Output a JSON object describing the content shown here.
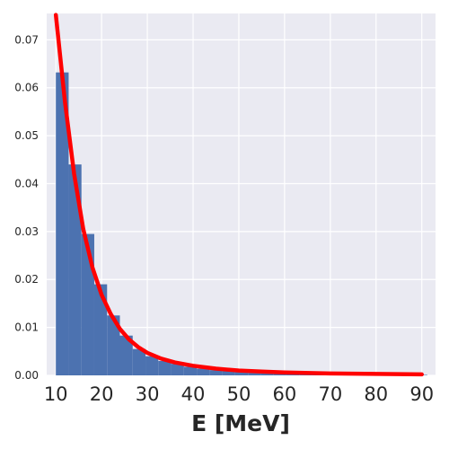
{
  "chart_data": {
    "type": "bar",
    "xlabel": "E [MeV]",
    "ylabel": "",
    "xlim": [
      8,
      93
    ],
    "ylim": [
      0,
      0.0755
    ],
    "grid": true,
    "x_ticks": [
      "10",
      "20",
      "30",
      "40",
      "50",
      "60",
      "70",
      "80",
      "90"
    ],
    "y_ticks": [
      "0.00",
      "0.01",
      "0.02",
      "0.03",
      "0.04",
      "0.05",
      "0.06",
      "0.07"
    ],
    "colors": {
      "background": "#eaeaf2",
      "bars": "#4c72b0",
      "curve": "#ff0000"
    },
    "histogram": {
      "bin_edges": [
        10,
        12.8,
        15.6,
        18.4,
        21.2,
        24.0,
        26.8,
        29.6,
        32.4,
        35.2,
        38.0,
        40.8,
        43.6,
        46.4,
        49.2,
        52.0,
        54.8,
        57.6,
        60.4,
        63.2,
        66.0,
        68.8,
        71.6,
        74.4,
        77.2,
        80.0,
        82.8,
        85.6,
        88.4,
        91.2
      ],
      "values": [
        0.0632,
        0.044,
        0.0295,
        0.019,
        0.0125,
        0.0083,
        0.0055,
        0.004,
        0.003,
        0.0024,
        0.0018,
        0.0014,
        0.0011,
        0.0009,
        0.0007,
        0.0006,
        0.0005,
        0.0004,
        0.0004,
        0.0003,
        0.0003,
        0.0002,
        0.0002,
        0.0002,
        0.0002,
        0.0001,
        0.0001,
        0.0001,
        0.0001
      ]
    },
    "series": [
      {
        "type": "line",
        "x": [
          10,
          12,
          14,
          16,
          18,
          20,
          22,
          24,
          26,
          28,
          30,
          33,
          36,
          40,
          45,
          50,
          55,
          60,
          70,
          80,
          90
        ],
        "y": [
          0.0752,
          0.057,
          0.042,
          0.0305,
          0.0225,
          0.0168,
          0.0128,
          0.0097,
          0.0075,
          0.0059,
          0.0047,
          0.0035,
          0.0027,
          0.002,
          0.0014,
          0.001,
          0.0008,
          0.0006,
          0.0004,
          0.0003,
          0.0002
        ]
      }
    ]
  }
}
